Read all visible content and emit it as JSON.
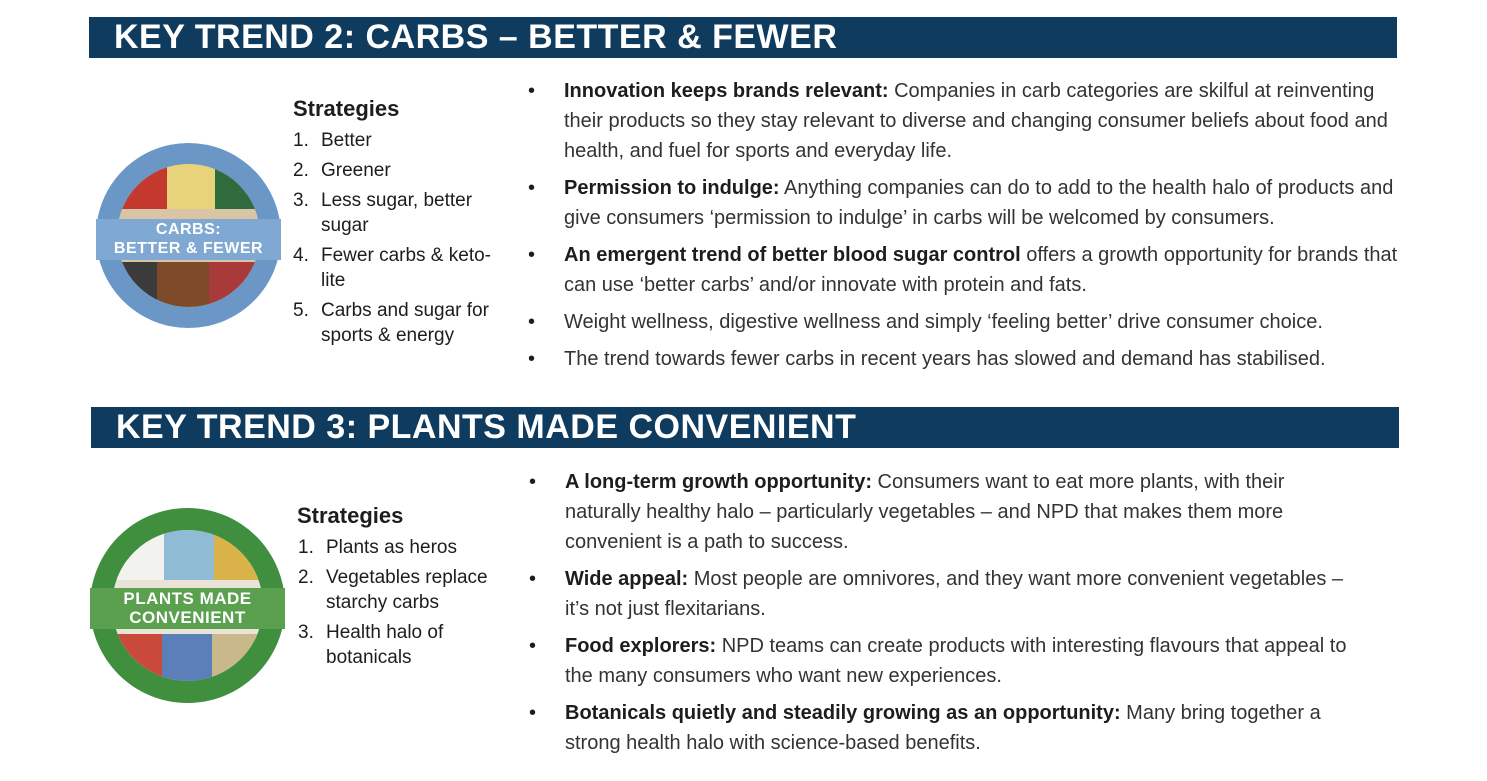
{
  "sections": [
    {
      "banner": "KEY TREND 2: CARBS – BETTER & FEWER",
      "badge": {
        "line1": "CARBS:",
        "line2": "BETTER & FEWER",
        "ring_color": "#6a97c6",
        "band_color": "#7fa8d2"
      },
      "strategies_heading": "Strategies",
      "strategies": [
        {
          "num": "1.",
          "text": "Better"
        },
        {
          "num": "2.",
          "text": "Greener"
        },
        {
          "num": "3.",
          "text": "Less sugar, better sugar"
        },
        {
          "num": "4.",
          "text": "Fewer carbs & keto-lite"
        },
        {
          "num": "5.",
          "text": "Carbs and sugar for sports & energy"
        }
      ],
      "bullets": [
        {
          "lead": "Innovation keeps brands relevant:",
          "text": " Companies in carb categories are skilful at reinventing their products so they stay relevant to diverse and changing consumer beliefs about food and health, and fuel for sports and everyday life."
        },
        {
          "lead": "Permission to indulge:",
          "text": " Anything companies can do to add to the health halo of products and give consumers ‘permission to indulge’ in carbs will be welcomed by consumers."
        },
        {
          "lead": "An emergent trend of better blood sugar control",
          "text": " offers a growth opportunity for brands that can use ‘better carbs’ and/or innovate with protein and fats."
        },
        {
          "lead": "",
          "text": "Weight wellness, digestive wellness and simply ‘feeling better’ drive consumer choice."
        },
        {
          "lead": "",
          "text": "The trend towards fewer carbs in recent years has slowed and demand has stabilised."
        }
      ]
    },
    {
      "banner": "KEY TREND 3: PLANTS MADE CONVENIENT",
      "badge": {
        "line1": "PLANTS MADE",
        "line2": "CONVENIENT",
        "ring_color": "#3f8f3f",
        "band_color": "#5aa04f"
      },
      "strategies_heading": "Strategies",
      "strategies": [
        {
          "num": "1.",
          "text": "Plants as heros"
        },
        {
          "num": "2.",
          "text": "Vegetables replace starchy carbs"
        },
        {
          "num": "3.",
          "text": "Health halo of botanicals"
        }
      ],
      "bullets": [
        {
          "lead": "A long-term growth opportunity:",
          "text": " Consumers want to eat more plants, with their naturally healthy halo – particularly vegetables – and NPD that makes them more convenient is a path to success."
        },
        {
          "lead": "Wide appeal:",
          "text": " Most people are omnivores, and they want more convenient vegetables – it’s not just flexitarians."
        },
        {
          "lead": "Food explorers:",
          "text": " NPD teams can create products with interesting flavours that appeal to the many consumers who want new experiences."
        },
        {
          "lead": "Botanicals quietly and steadily growing as an opportunity:",
          "text": " Many bring together a strong health halo with science-based benefits."
        }
      ]
    }
  ]
}
